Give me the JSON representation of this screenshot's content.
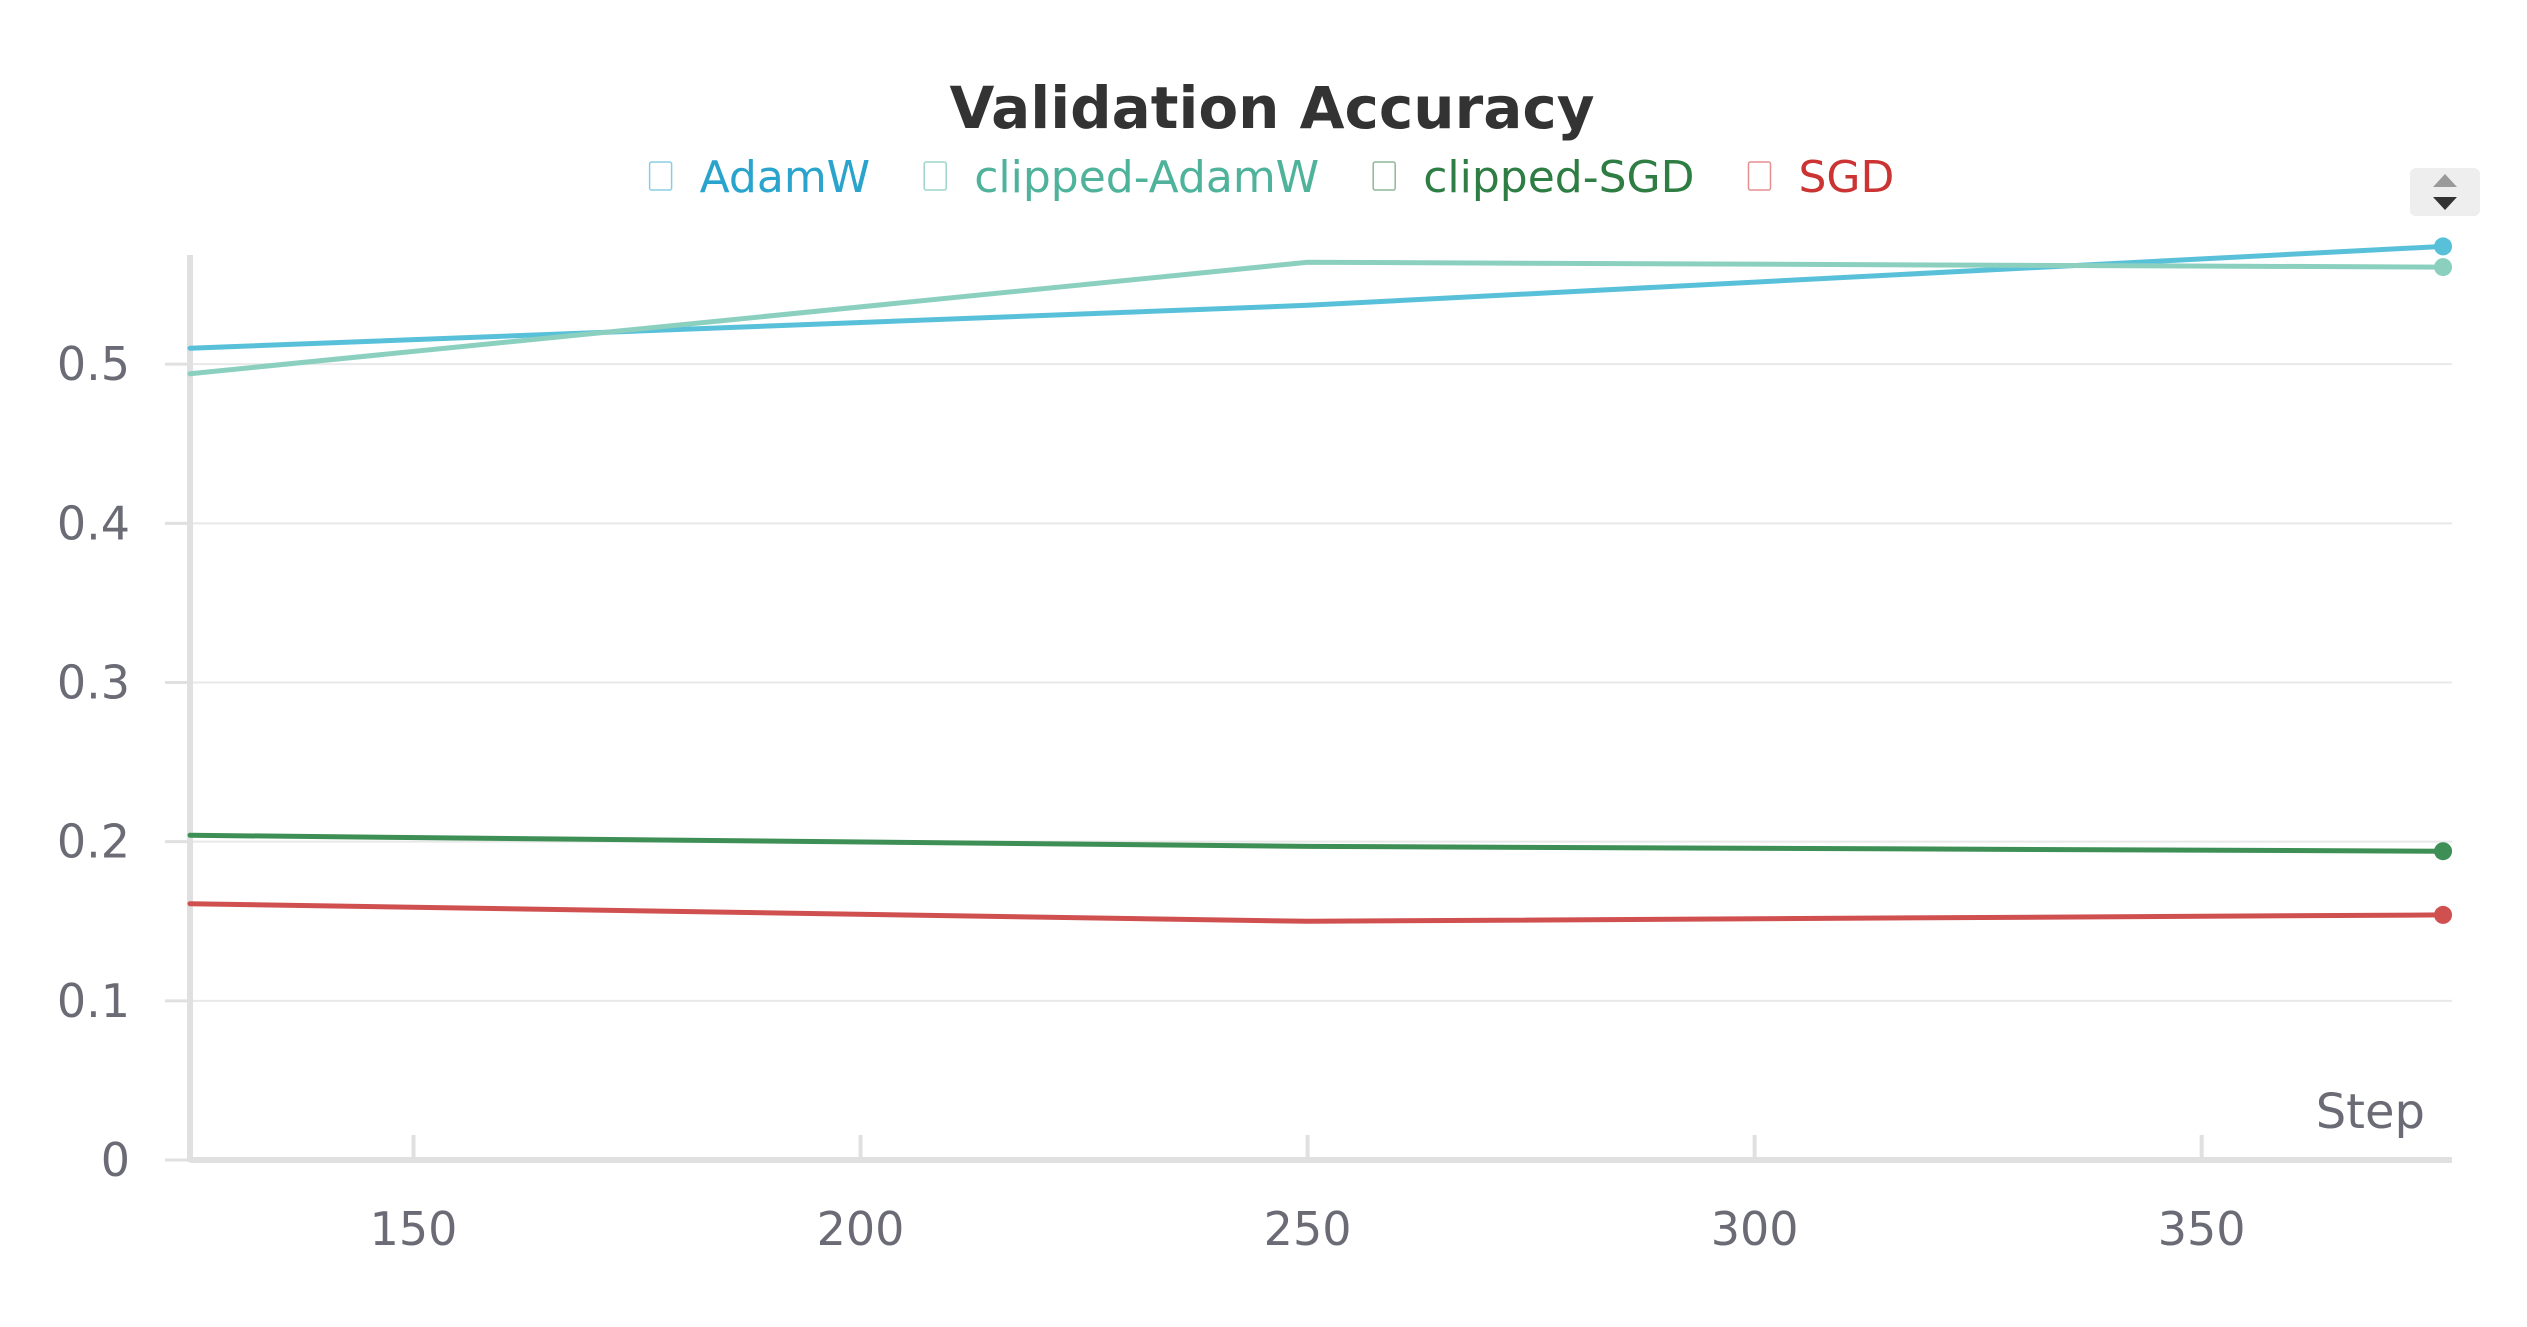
{
  "chart_data": {
    "type": "line",
    "title": "Validation Accuracy",
    "xlabel": "Step",
    "ylabel": "",
    "xlim": [
      125,
      378
    ],
    "ylim": [
      0,
      0.6
    ],
    "x_ticks": [
      150,
      200,
      250,
      300,
      350
    ],
    "y_ticks": [
      0,
      0.1,
      0.2,
      0.3,
      0.4,
      0.5
    ],
    "x_tick_labels": [
      "150",
      "200",
      "250",
      "300",
      "350"
    ],
    "y_tick_labels": [
      "0",
      "0.1",
      "0.2",
      "0.3",
      "0.4",
      "0.5"
    ],
    "grid": true,
    "legend_position": "top",
    "series": [
      {
        "name": "AdamW",
        "color": "#58c0d9",
        "text_color": "#2aa4cc",
        "x": [
          125,
          250,
          377
        ],
        "y": [
          0.51,
          0.537,
          0.574
        ]
      },
      {
        "name": "clipped-AdamW",
        "color": "#8bd0bf",
        "text_color": "#4fb39c",
        "x": [
          125,
          250,
          377
        ],
        "y": [
          0.494,
          0.564,
          0.561
        ]
      },
      {
        "name": "clipped-SGD",
        "color": "#3d8f55",
        "text_color": "#2e7d43",
        "x": [
          125,
          250,
          377
        ],
        "y": [
          0.204,
          0.197,
          0.194
        ]
      },
      {
        "name": "SGD",
        "color": "#d05050",
        "text_color": "#cc3333",
        "x": [
          125,
          250,
          377
        ],
        "y": [
          0.161,
          0.15,
          0.154
        ]
      }
    ]
  },
  "controls": {
    "sort_icon": "sort-up-down-icon"
  }
}
